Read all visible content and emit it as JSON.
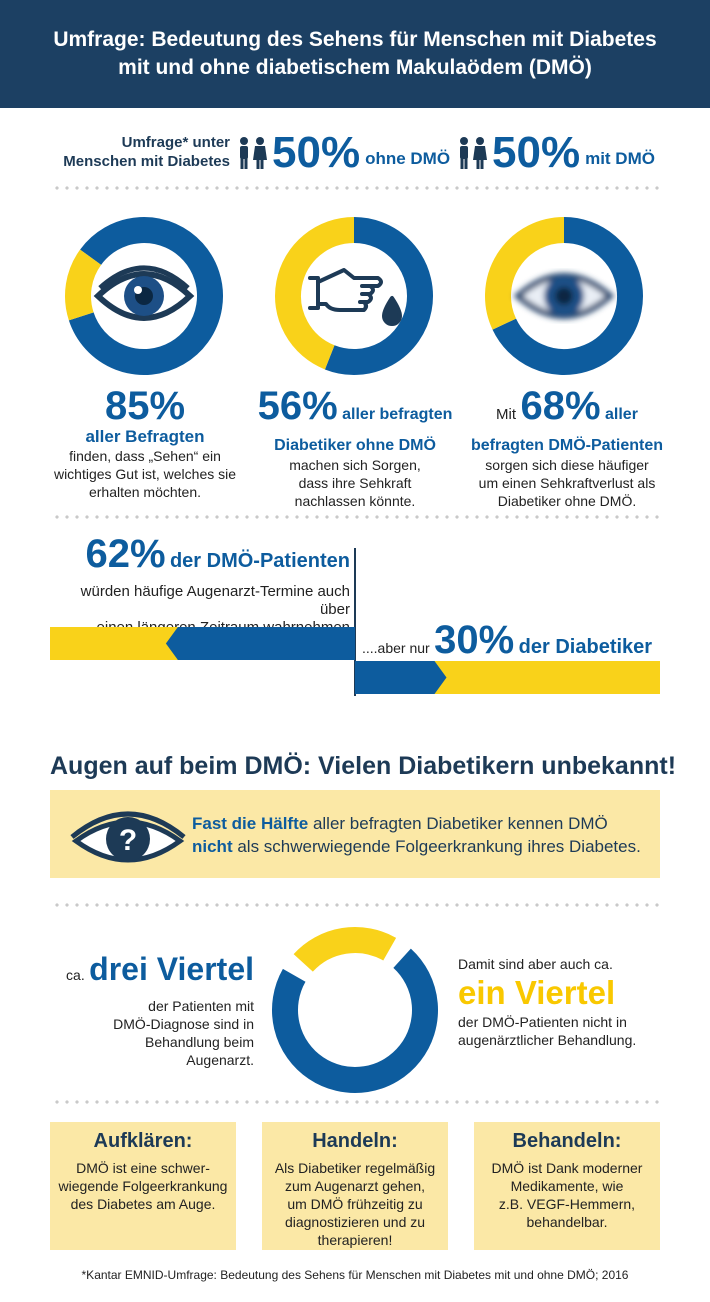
{
  "header": {
    "line1": "Umfrage: Bedeutung des Sehens für Menschen mit Diabetes",
    "line2": "mit und ohne diabetischem Makulaödem (DMÖ)"
  },
  "survey": {
    "label_line1": "Umfrage* unter",
    "label_line2": "Menschen mit Diabetes",
    "group1_pct": "50%",
    "group1_label": "ohne DMÖ",
    "group2_pct": "50%",
    "group2_label": "mit DMÖ"
  },
  "stats": [
    {
      "pct": "85%",
      "bold_line": "aller Befragten",
      "text": [
        "finden, dass „Sehen“ ein",
        "wichtiges Gut ist, welches sie",
        "erhalten möchten."
      ]
    },
    {
      "pct": "56%",
      "bold_a": "aller befragten",
      "bold_b": "Diabetiker ohne DMÖ",
      "text": [
        "machen sich Sorgen,",
        "dass ihre Sehkraft",
        "nachlassen könnte."
      ]
    },
    {
      "prefix": "Mit",
      "pct": "68%",
      "bold_a": "aller",
      "bold_b": "befragten DMÖ-Patienten",
      "text": [
        "sorgen sich diese häufiger",
        "um einen Sehkraftverlust als",
        "Diabetiker ohne DMÖ."
      ]
    }
  ],
  "compare": {
    "pct1": "62%",
    "label1": "der DMÖ-Patienten",
    "text1": [
      "würden häufige Augenarzt-Termine auch über",
      "einen längeren Zeitraum wahrnehmen"
    ],
    "prefix2": "....aber nur",
    "pct2": "30%",
    "label2": "der Diabetiker"
  },
  "section_title": "Augen auf beim DMÖ: Vielen Diabetikern unbekannt!",
  "awareness": {
    "bold1": "Fast die Hälfte",
    "rest1": "aller befragten Diabetiker kennen DMÖ",
    "bold2": "nicht",
    "rest2": "als schwerwiegende Folgeerkrankung ihres Diabetes."
  },
  "treatment": {
    "ca_left": "ca.",
    "big_left": "drei Viertel",
    "left_text": [
      "der Patienten mit",
      "DMÖ-Diagnose sind in",
      "Behandlung beim",
      "Augenarzt."
    ],
    "right_intro": "Damit sind aber auch ca.",
    "big_right": "ein Viertel",
    "right_text": [
      "der DMÖ-Patienten nicht in",
      "augenärztlicher Behandlung."
    ]
  },
  "boxes": [
    {
      "title": "Aufklären:",
      "text": [
        "DMÖ ist eine schwer-",
        "wiegende Folgeerkrankung",
        "des Diabetes am Auge."
      ]
    },
    {
      "title": "Handeln:",
      "text": [
        "Als Diabetiker regelmäßig",
        "zum Augenarzt gehen,",
        "um DMÖ frühzeitig zu",
        "diagnostizieren und zu",
        "therapieren!"
      ]
    },
    {
      "title": "Behandeln:",
      "text": [
        "DMÖ ist Dank moderner",
        "Medikamente, wie",
        "z.B. VEGF-Hemmern,",
        "behandelbar."
      ]
    }
  ],
  "footnote": "*Kantar EMNID-Umfrage: Bedeutung des Sehens für Menschen mit Diabetes mit und ohne DMÖ; 2016",
  "colors": {
    "blue": "#0d5c9e",
    "yellow": "#f9d21a",
    "navy": "#1c4063",
    "cream": "#fbe8a6"
  },
  "chart_data": [
    {
      "type": "pie",
      "style": "donut",
      "values": [
        85,
        15
      ]
    },
    {
      "type": "pie",
      "style": "donut",
      "values": [
        56,
        44
      ]
    },
    {
      "type": "pie",
      "style": "donut",
      "values": [
        68,
        32
      ]
    },
    {
      "type": "bar",
      "orientation": "horizontal",
      "categories": [
        "DMÖ-Patienten",
        "Diabetiker"
      ],
      "values": [
        62,
        30
      ]
    },
    {
      "type": "pie",
      "style": "donut",
      "values": [
        75,
        25
      ]
    }
  ]
}
